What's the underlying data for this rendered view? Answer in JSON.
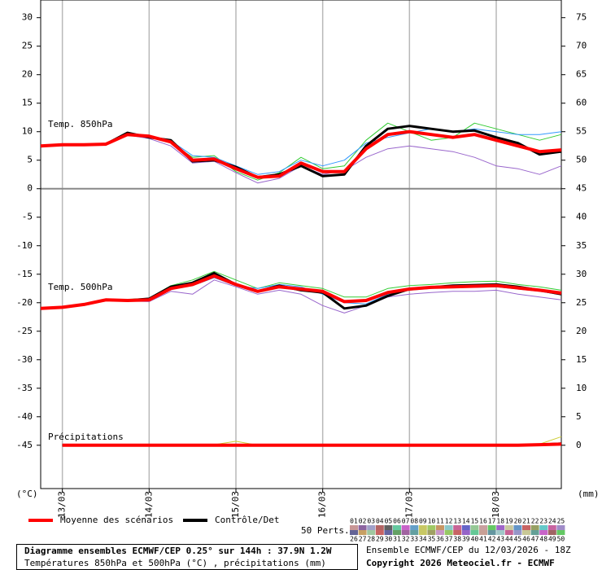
{
  "chart_data": {
    "type": "line",
    "x": [
      0,
      6,
      12,
      18,
      24,
      30,
      36,
      42,
      48,
      54,
      60,
      66,
      72,
      78,
      84,
      90,
      96,
      102,
      108,
      114,
      120,
      126,
      132,
      138,
      144
    ],
    "xlim": [
      0,
      144
    ],
    "xticks": [
      {
        "value": 6,
        "label": "13/03"
      },
      {
        "value": 30,
        "label": "14/03"
      },
      {
        "value": 54,
        "label": "15/03"
      },
      {
        "value": 78,
        "label": "16/03"
      },
      {
        "value": 102,
        "label": "17/03"
      },
      {
        "value": 126,
        "label": "18/03"
      }
    ],
    "ylim": [
      -52.6,
      33.1
    ],
    "yticks": [
      30,
      25,
      20,
      15,
      10,
      5,
      0,
      -5,
      -10,
      -15,
      -20,
      -25,
      -30,
      -35,
      -40,
      -45
    ],
    "y2lim": [
      -7.6,
      78.1
    ],
    "y2ticks": [
      75,
      70,
      65,
      60,
      55,
      50,
      45,
      40,
      35,
      30,
      25,
      20,
      15,
      10,
      5,
      0
    ],
    "ylabel": "(°C)",
    "y2label": "(mm)",
    "grid": true,
    "legend": {
      "mean": "Moyenne des scénarios",
      "mean_color": "#ff0000",
      "control": "Contrôle/Det",
      "control_color": "#000000",
      "members_label": "50 Perts."
    },
    "member_names": [
      "01",
      "02",
      "03",
      "04",
      "05",
      "06",
      "07",
      "08",
      "09",
      "10",
      "11",
      "12",
      "13",
      "14",
      "15",
      "16",
      "17",
      "18",
      "19",
      "20",
      "21",
      "22",
      "23",
      "24",
      "25",
      "26",
      "27",
      "28",
      "29",
      "30",
      "31",
      "32",
      "33",
      "34",
      "35",
      "36",
      "37",
      "38",
      "39",
      "40",
      "41",
      "42",
      "43",
      "44",
      "45",
      "46",
      "47",
      "48",
      "49",
      "50"
    ],
    "member_colors": [
      "#c89696",
      "#8c64a0",
      "#a0a0c8",
      "#b46464",
      "#606060",
      "#64c8a0",
      "#c864c8",
      "#64a0c8",
      "#c8c864",
      "#a0c864",
      "#c89664",
      "#8cc8c8",
      "#c86496",
      "#6464c8",
      "#96c896",
      "#c8a0a0",
      "#64c864",
      "#a064c8",
      "#c8c8a0",
      "#6496c8",
      "#c86464",
      "#96a064",
      "#64c8c8",
      "#c864a0",
      "#a08cc8",
      "#646496",
      "#c8a064",
      "#a0c8a0",
      "#c86464",
      "#6464a0",
      "#64a064",
      "#a064a0",
      "#64a0a0",
      "#c8c864",
      "#a0a064",
      "#c896c8",
      "#96c864",
      "#c86464",
      "#9664c8",
      "#64c896",
      "#c8a096",
      "#6496a0",
      "#a0c8c8",
      "#c86496",
      "#9696c8",
      "#c8c896",
      "#64a096",
      "#c864c8",
      "#a06464",
      "#64c864"
    ],
    "series": [
      {
        "name": "Temp. 850hPa",
        "axis": "y",
        "mean": [
          7.5,
          7.7,
          7.7,
          7.8,
          9.5,
          9.2,
          8.2,
          5.0,
          5.2,
          3.5,
          2.0,
          2.2,
          4.5,
          3.0,
          3.0,
          7.0,
          9.5,
          10.0,
          9.5,
          9.0,
          9.5,
          8.5,
          7.5,
          6.5,
          6.8
        ],
        "control": [
          7.5,
          7.7,
          7.7,
          7.8,
          9.8,
          9.0,
          8.5,
          4.8,
          5.0,
          3.8,
          2.0,
          2.5,
          4.0,
          2.2,
          2.5,
          7.5,
          10.5,
          11.0,
          10.5,
          10.0,
          10.2,
          9.0,
          8.0,
          6.0,
          6.5
        ],
        "members": [
          {
            "name": "01",
            "color": "#33cc33",
            "values": [
              7.5,
              7.7,
              7.7,
              7.8,
              9.7,
              9.3,
              8.0,
              5.5,
              5.8,
              3.0,
              1.5,
              2.8,
              5.5,
              3.5,
              4.0,
              8.5,
              11.5,
              10.0,
              8.5,
              9.0,
              11.5,
              10.5,
              9.5,
              8.5,
              9.5
            ]
          },
          {
            "name": "02",
            "color": "#9966cc",
            "values": [
              7.5,
              7.7,
              7.7,
              7.8,
              9.4,
              8.8,
              7.5,
              4.5,
              4.8,
              2.8,
              1.0,
              1.8,
              4.0,
              2.5,
              3.2,
              5.5,
              7.0,
              7.5,
              7.0,
              6.5,
              5.5,
              4.0,
              3.5,
              2.5,
              4.0
            ]
          },
          {
            "name": "03",
            "color": "#3399ff",
            "values": [
              7.5,
              7.7,
              7.7,
              7.8,
              9.6,
              9.0,
              8.4,
              5.8,
              5.5,
              4.0,
              2.5,
              3.0,
              5.0,
              4.0,
              5.0,
              8.0,
              9.0,
              9.8,
              10.5,
              10.0,
              10.5,
              10.0,
              9.5,
              9.5,
              10.0
            ]
          }
        ]
      },
      {
        "name": "Temp. 500hPa",
        "axis": "y",
        "mean": [
          -21,
          -20.8,
          -20.3,
          -19.5,
          -19.6,
          -19.5,
          -17.5,
          -16.8,
          -15.3,
          -16.8,
          -18,
          -17.2,
          -17.6,
          -18,
          -19.8,
          -19.6,
          -18.2,
          -17.6,
          -17.3,
          -17.2,
          -17.1,
          -17.0,
          -17.4,
          -17.8,
          -18.3
        ],
        "control": [
          -21,
          -20.8,
          -20.3,
          -19.5,
          -19.6,
          -19.3,
          -17.2,
          -16.5,
          -14.8,
          -16.8,
          -18.0,
          -17.0,
          -17.8,
          -18.2,
          -21,
          -20.5,
          -18.8,
          -17.6,
          -17.3,
          -17.0,
          -16.9,
          -16.8,
          -17.2,
          -17.8,
          -18.5
        ],
        "members": [
          {
            "name": "01",
            "color": "#33cc33",
            "values": [
              -21,
              -20.8,
              -20.3,
              -19.5,
              -19.4,
              -19.2,
              -17.0,
              -16.0,
              -14.5,
              -16.0,
              -17.5,
              -16.5,
              -17.0,
              -17.5,
              -19.0,
              -19.0,
              -17.5,
              -17.0,
              -16.8,
              -16.5,
              -16.3,
              -16.2,
              -16.8,
              -17.2,
              -17.8
            ]
          },
          {
            "name": "02",
            "color": "#9966cc",
            "values": [
              -21,
              -20.8,
              -20.3,
              -19.5,
              -19.7,
              -19.8,
              -18.0,
              -18.5,
              -16.0,
              -17.2,
              -18.5,
              -17.8,
              -18.5,
              -20.5,
              -21.8,
              -20.5,
              -19.0,
              -18.5,
              -18.2,
              -18.0,
              -18.0,
              -17.8,
              -18.5,
              -19.0,
              -19.5
            ]
          },
          {
            "name": "03",
            "color": "#3399ff",
            "values": [
              -21,
              -20.8,
              -20.3,
              -19.5,
              -19.5,
              -19.6,
              -17.6,
              -17.0,
              -15.6,
              -17.0,
              -17.5,
              -16.8,
              -17.2,
              -18.5,
              -20.0,
              -20.2,
              -18.5,
              -17.8,
              -17.5,
              -17.2,
              -17.3,
              -17.2,
              -17.6,
              -18.0,
              -18.6
            ]
          }
        ]
      },
      {
        "name": "Précipitations",
        "axis": "y2",
        "mean": [
          null,
          0,
          0,
          0,
          0,
          0,
          0,
          0,
          0,
          0,
          0,
          0,
          0,
          0,
          0,
          0,
          0,
          0,
          0,
          0,
          0,
          0,
          0,
          0.1,
          0.2
        ],
        "control": [
          null,
          0,
          0,
          0,
          0,
          0,
          0,
          0,
          0,
          0,
          0,
          0,
          0,
          0,
          0,
          0,
          0,
          0,
          0,
          0,
          0,
          0,
          0,
          0.1,
          0.3
        ],
        "members": [
          {
            "name": "01",
            "color": "#cccc33",
            "values": [
              null,
              0,
              0,
              0,
              0,
              0,
              0,
              0,
              0.1,
              0.7,
              0,
              0,
              0,
              0,
              0,
              0,
              0,
              0,
              0,
              0,
              0,
              0,
              0,
              0.2,
              1.5
            ]
          }
        ]
      }
    ],
    "footer": {
      "title": "Diagramme ensembles ECMWF/CEP 0.25° sur 144h : 37.9N 1.2W",
      "subtitle": "Températures 850hPa et 500hPa (°C) , précipitations (mm)",
      "run": "Ensemble ECMWF/CEP du 12/03/2026 - 18Z",
      "copyright": "Copyright 2026 Meteociel.fr - ECMWF"
    }
  }
}
